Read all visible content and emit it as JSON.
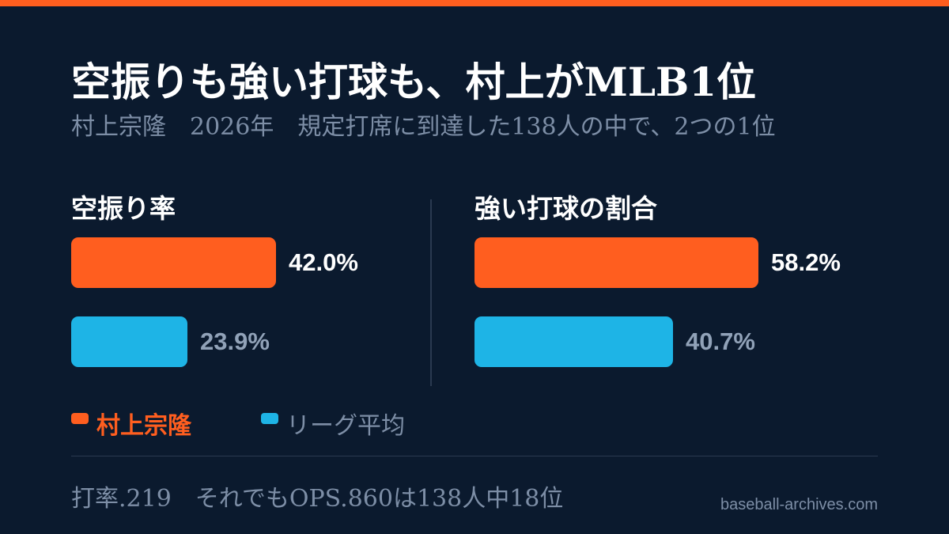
{
  "title": "空振りも強い打球も、村上がMLB1位",
  "subtitle": "村上宗隆　2026年　規定打席に到達した138人の中で、2つの1位",
  "colors": {
    "accent": "#ff5e1f",
    "league": "#1eb4e6",
    "background": "#0b1a2e",
    "muted": "#7d8ea6",
    "value_highlight": "#ffffff",
    "value_muted": "#91a2b8"
  },
  "chart_data": [
    {
      "type": "bar",
      "orientation": "horizontal",
      "title": "空振り率",
      "categories": [
        "村上宗隆",
        "リーグ平均"
      ],
      "values": [
        42.0,
        23.9
      ],
      "value_labels": [
        "42.0%",
        "23.9%"
      ],
      "unit": "%"
    },
    {
      "type": "bar",
      "orientation": "horizontal",
      "title": "強い打球の割合",
      "categories": [
        "村上宗隆",
        "リーグ平均"
      ],
      "values": [
        58.2,
        40.7
      ],
      "value_labels": [
        "58.2%",
        "40.7%"
      ],
      "unit": "%"
    }
  ],
  "legend": [
    {
      "label": "村上宗隆",
      "color": "#ff5e1f"
    },
    {
      "label": "リーグ平均",
      "color": "#1eb4e6"
    }
  ],
  "footnote": "打率.219　それでもOPS.860は138人中18位",
  "source": "baseball-archives.com"
}
